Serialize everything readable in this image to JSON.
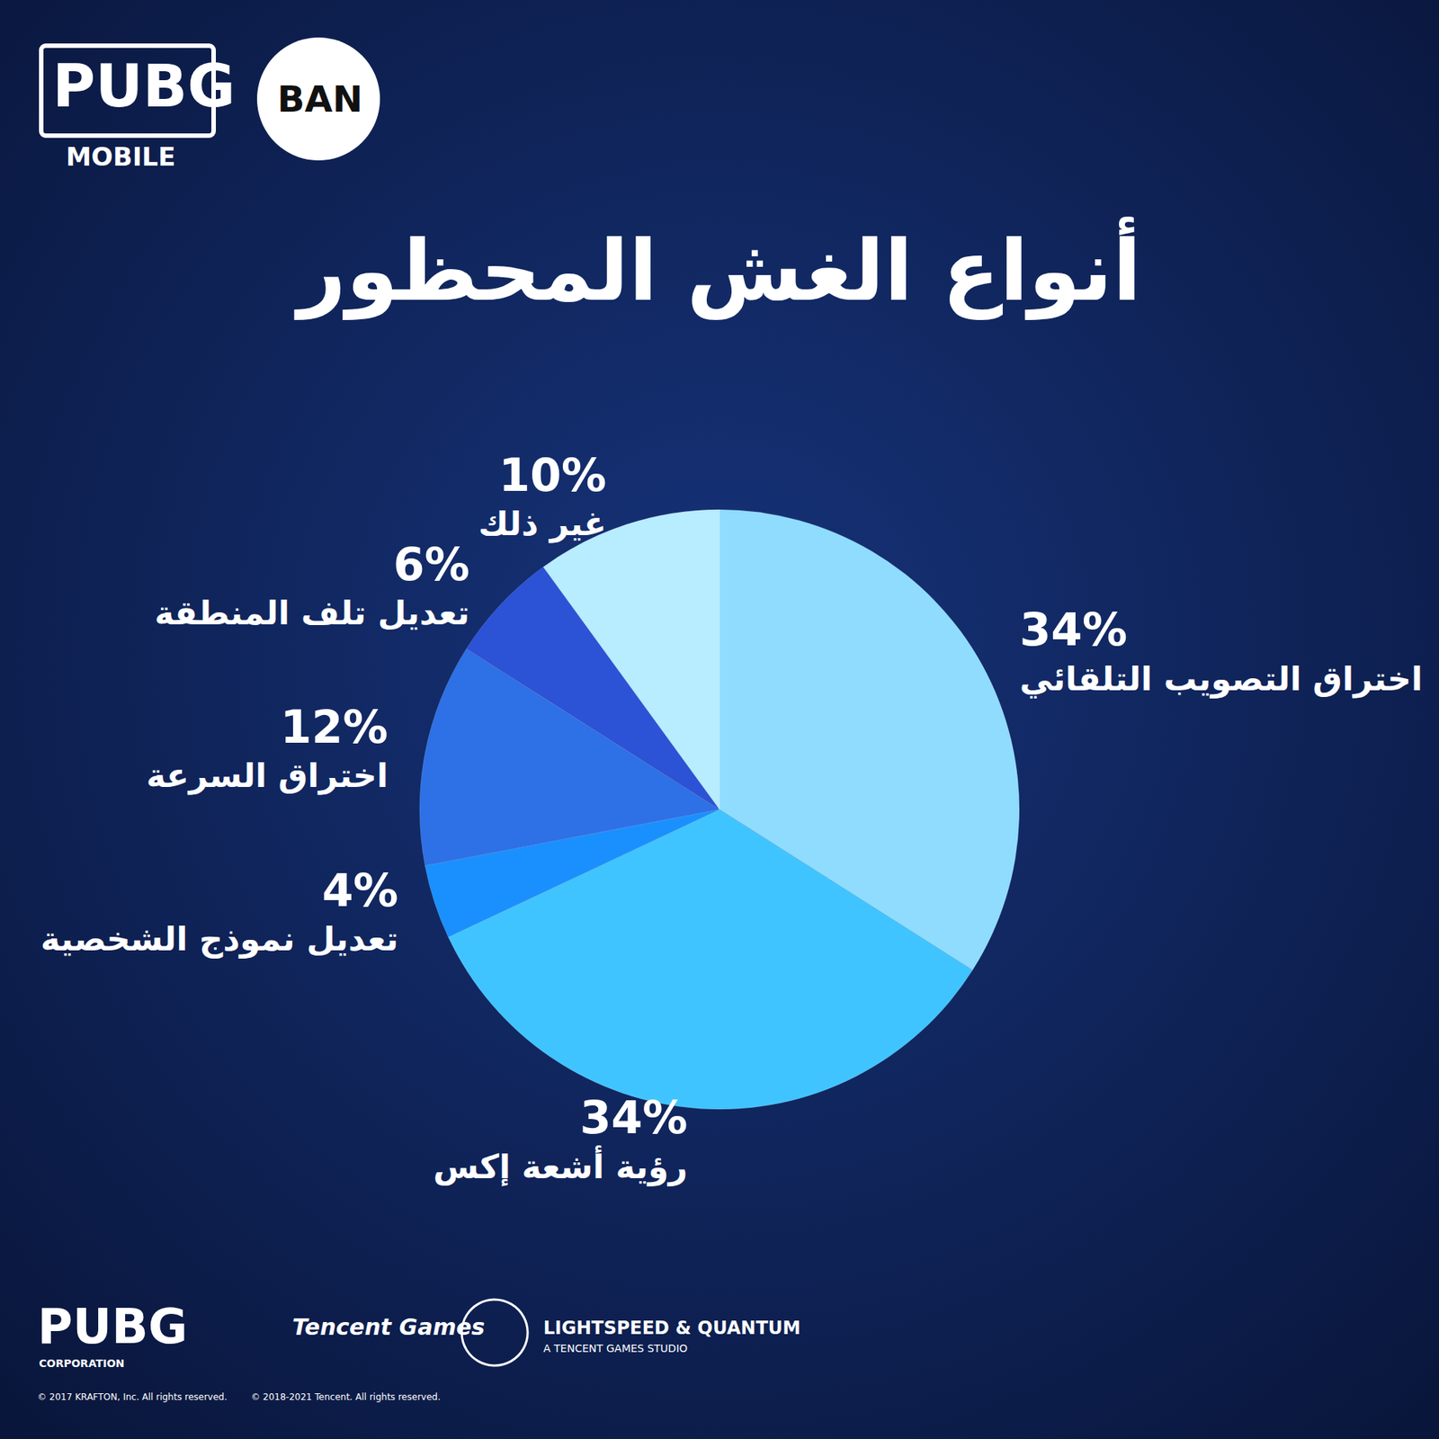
{
  "chart_data": {
    "type": "pie",
    "title": "أنواع الغش المحظور",
    "categories": [
      "اختراق التصويب التلقائي",
      "رؤية أشعة إكس",
      "تعديل نموذج الشخصية",
      "اختراق السرعة",
      "تعديل تلف المنطقة",
      "غير ذلك"
    ],
    "values": [
      34,
      34,
      4,
      12,
      6,
      10
    ],
    "value_labels": [
      "34%",
      "34%",
      "4%",
      "12%",
      "6%",
      "10%"
    ],
    "colors": [
      "#8fdcff",
      "#40c4ff",
      "#1a90ff",
      "#2e70e6",
      "#2c52d6",
      "#b8ecff"
    ],
    "data_labels": true
  },
  "branding": {
    "top_logo": [
      "PUBG",
      "MOBILE"
    ],
    "badge": "BAN",
    "footer_logos": [
      "PUBG",
      "CORPORATION",
      "Tencent Games",
      "LIGHTSPEED & QUANTUM",
      "A TENCENT GAMES STUDIO"
    ],
    "copyright": [
      "© 2017 KRAFTON, Inc. All rights reserved.",
      "© 2018-2021 Tencent. All rights reserved."
    ]
  }
}
